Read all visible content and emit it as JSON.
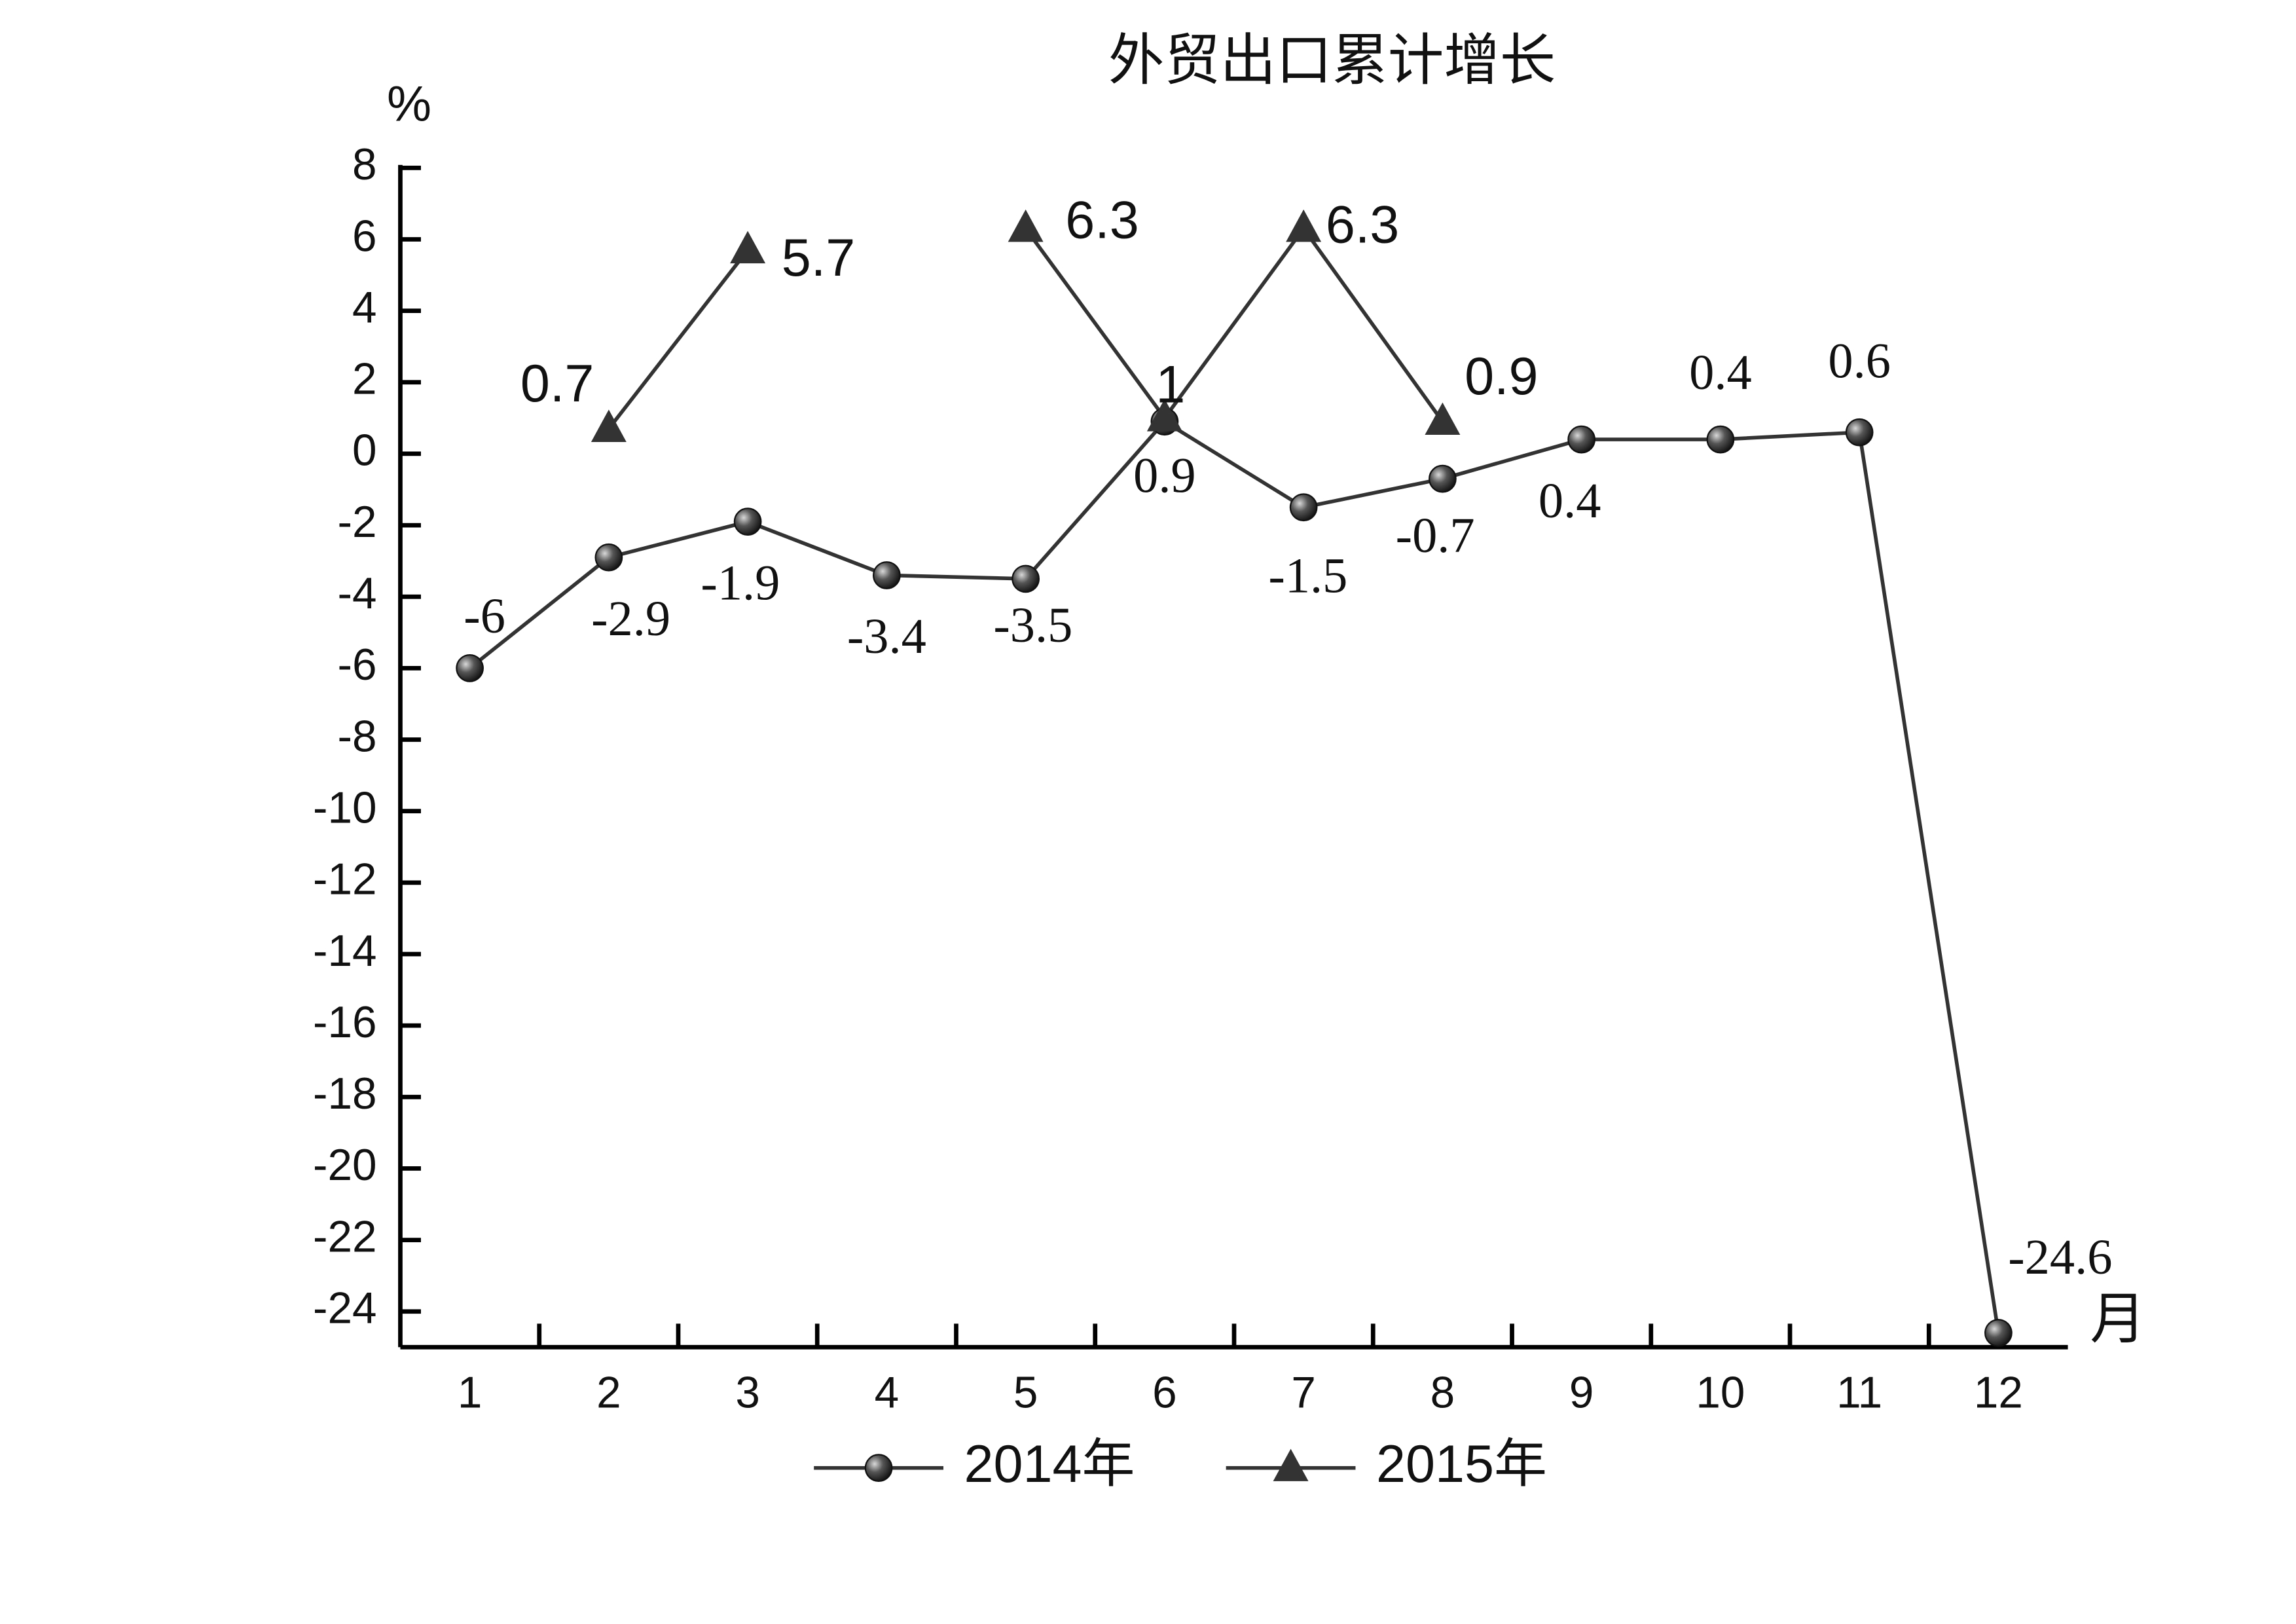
{
  "chart_data": {
    "type": "line",
    "title": "外贸出口累计增长",
    "y_label": "%",
    "x_label": "月",
    "categories": [
      "1",
      "2",
      "3",
      "4",
      "5",
      "6",
      "7",
      "8",
      "9",
      "10",
      "11",
      "12"
    ],
    "series": [
      {
        "name": "2014年",
        "color": "#333333",
        "marker": "circle",
        "values": [
          -6,
          -2.9,
          -1.9,
          -3.4,
          -3.5,
          0.9,
          -1.5,
          -0.7,
          0.4,
          0.4,
          0.6,
          -24.6
        ]
      },
      {
        "name": "2015年",
        "color": "#333333",
        "marker": "triangle",
        "values": [
          null,
          0.7,
          5.7,
          null,
          6.3,
          1,
          6.3,
          0.9,
          null,
          null,
          null,
          null
        ]
      }
    ],
    "ylim": [
      -25,
      8
    ],
    "yticks": [
      8,
      6,
      4,
      2,
      0,
      -2,
      -4,
      -6,
      -8,
      -10,
      -12,
      -14,
      -16,
      -18,
      -20,
      -22,
      -24
    ],
    "grid": false
  }
}
